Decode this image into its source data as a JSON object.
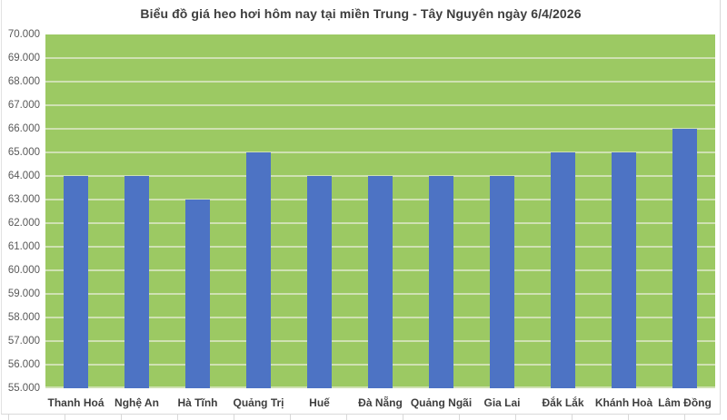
{
  "chart_data": {
    "type": "bar",
    "title": "Biểu đồ giá heo hơi hôm nay tại miền Trung - Tây Nguyên ngày 6/4/2026",
    "categories": [
      "Thanh Hoá",
      "Nghệ An",
      "Hà Tĩnh",
      "Quảng Trị",
      "Huế",
      "Đà Nẵng",
      "Quảng Ngãi",
      "Gia Lai",
      "Đắk Lắk",
      "Khánh Hoà",
      "Lâm Đồng"
    ],
    "values": [
      64000,
      64000,
      63000,
      65000,
      64000,
      64000,
      64000,
      64000,
      65000,
      65000,
      66000
    ],
    "xlabel": "",
    "ylabel": "",
    "ylim": [
      55000,
      70000
    ],
    "ytick_step": 1000,
    "ytick_labels": [
      "70.000",
      "69.000",
      "68.000",
      "67.000",
      "66.000",
      "65.000",
      "64.000",
      "63.000",
      "62.000",
      "61.000",
      "60.000",
      "59.000",
      "58.000",
      "57.000",
      "56.000",
      "55.000"
    ],
    "grid": true,
    "legend_position": "none",
    "colors": {
      "bar": "#4d73c4",
      "plot_background": "#9cc963",
      "gridline": "#cfe1b2",
      "title_text": "#3e3e3e",
      "category_text": "#3e3e3e",
      "ytick_text": "#595959",
      "chart_border": "#d9d9d9"
    }
  }
}
